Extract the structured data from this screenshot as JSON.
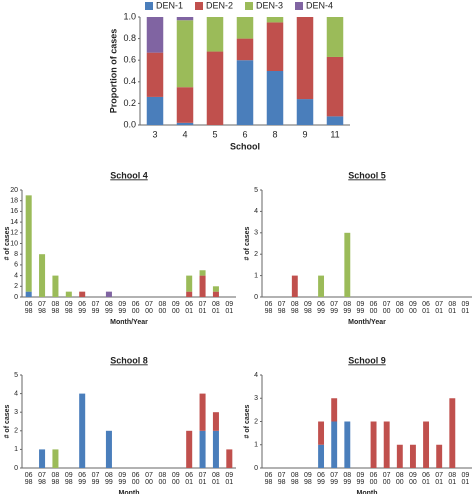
{
  "chart_data": [
    {
      "type": "bar",
      "stacked": true,
      "xlabel": "School",
      "ylabel": "Proportion of cases",
      "categories": [
        "3",
        "4",
        "5",
        "6",
        "8",
        "9",
        "11"
      ],
      "series": [
        {
          "name": "DEN-1",
          "color": "#4a7ebb",
          "values": [
            0.26,
            0.02,
            0,
            0.6,
            0.5,
            0.24,
            0.08
          ]
        },
        {
          "name": "DEN-2",
          "color": "#c0504d",
          "values": [
            0.41,
            0.33,
            0.68,
            0.2,
            0.45,
            0.76,
            0.55
          ]
        },
        {
          "name": "DEN-3",
          "color": "#9bbb59",
          "values": [
            0,
            0.62,
            0.32,
            0.2,
            0.05,
            0,
            0.37
          ]
        },
        {
          "name": "DEN-4",
          "color": "#8064a2",
          "values": [
            0.33,
            0.03,
            0,
            0,
            0,
            0,
            0
          ]
        }
      ],
      "ylim": [
        0,
        1
      ],
      "yticks": [
        {
          "value": 0,
          "label": "0.0"
        },
        {
          "value": 0.2,
          "label": "0.2"
        },
        {
          "value": 0.4,
          "label": "0.4"
        },
        {
          "value": 0.6,
          "label": "0.6"
        },
        {
          "value": 0.8,
          "label": "0.8"
        },
        {
          "value": 1,
          "label": "1.0"
        }
      ],
      "legend": "top"
    },
    {
      "type": "bar",
      "stacked": true,
      "title": "School 4",
      "xlabel": "Month/Year",
      "ylabel": "# of cases",
      "categories": [
        [
          "06",
          "98"
        ],
        [
          "07",
          "98"
        ],
        [
          "08",
          "98"
        ],
        [
          "09",
          "98"
        ],
        [
          "06",
          "99"
        ],
        [
          "07",
          "99"
        ],
        [
          "08",
          "99"
        ],
        [
          "09",
          "99"
        ],
        [
          "06",
          "00"
        ],
        [
          "07",
          "00"
        ],
        [
          "08",
          "00"
        ],
        [
          "09",
          "00"
        ],
        [
          "06",
          "01"
        ],
        [
          "07",
          "01"
        ],
        [
          "08",
          "01"
        ],
        [
          "09",
          "01"
        ]
      ],
      "series": [
        {
          "color": "#4a7ebb",
          "values": [
            1,
            0,
            0,
            0,
            0,
            0,
            0,
            0,
            0,
            0,
            0,
            0,
            0,
            0,
            0,
            0
          ]
        },
        {
          "color": "#c0504d",
          "values": [
            0,
            0,
            0,
            0,
            1,
            0,
            0,
            0,
            0,
            0,
            0,
            0,
            1,
            4,
            1,
            0
          ]
        },
        {
          "color": "#9bbb59",
          "values": [
            18,
            8,
            4,
            1,
            0,
            0,
            0,
            0,
            0,
            0,
            0,
            0,
            3,
            1,
            1,
            0
          ]
        },
        {
          "color": "#8064a2",
          "values": [
            0,
            0,
            0,
            0,
            0,
            0,
            1,
            0,
            0,
            0,
            0,
            0,
            0,
            0,
            0,
            0
          ]
        }
      ],
      "ylim": [
        0,
        20
      ],
      "yticks": [
        0,
        2,
        4,
        6,
        8,
        10,
        12,
        14,
        16,
        18,
        20
      ]
    },
    {
      "type": "bar",
      "stacked": true,
      "title": "School 5",
      "xlabel": "Month/Year",
      "ylabel": "# of cases",
      "categories": [
        [
          "06",
          "98"
        ],
        [
          "07",
          "98"
        ],
        [
          "08",
          "98"
        ],
        [
          "09",
          "98"
        ],
        [
          "06",
          "99"
        ],
        [
          "07",
          "99"
        ],
        [
          "08",
          "99"
        ],
        [
          "09",
          "99"
        ],
        [
          "06",
          "00"
        ],
        [
          "07",
          "00"
        ],
        [
          "08",
          "00"
        ],
        [
          "09",
          "00"
        ],
        [
          "06",
          "01"
        ],
        [
          "07",
          "01"
        ],
        [
          "08",
          "01"
        ],
        [
          "09",
          "01"
        ]
      ],
      "series": [
        {
          "color": "#4a7ebb",
          "values": [
            0,
            0,
            0,
            0,
            0,
            0,
            0,
            0,
            0,
            0,
            0,
            0,
            0,
            0,
            0,
            0
          ]
        },
        {
          "color": "#c0504d",
          "values": [
            0,
            0,
            1,
            0,
            0,
            0,
            0,
            0,
            0,
            0,
            0,
            0,
            0,
            0,
            0,
            0
          ]
        },
        {
          "color": "#9bbb59",
          "values": [
            0,
            0,
            0,
            0,
            1,
            0,
            3,
            0,
            0,
            0,
            0,
            0,
            0,
            0,
            0,
            0
          ]
        },
        {
          "color": "#8064a2",
          "values": [
            0,
            0,
            0,
            0,
            0,
            0,
            0,
            0,
            0,
            0,
            0,
            0,
            0,
            0,
            0,
            0
          ]
        }
      ],
      "ylim": [
        0,
        5
      ],
      "yticks": [
        0,
        1,
        2,
        3,
        4,
        5
      ]
    },
    {
      "type": "bar",
      "stacked": true,
      "title": "School 8",
      "xlabel": "Month",
      "ylabel": "# of cases",
      "categories": [
        [
          "06",
          "98"
        ],
        [
          "07",
          "98"
        ],
        [
          "08",
          "98"
        ],
        [
          "09",
          "98"
        ],
        [
          "06",
          "99"
        ],
        [
          "07",
          "99"
        ],
        [
          "08",
          "99"
        ],
        [
          "09",
          "99"
        ],
        [
          "06",
          "00"
        ],
        [
          "07",
          "00"
        ],
        [
          "08",
          "00"
        ],
        [
          "09",
          "00"
        ],
        [
          "06",
          "01"
        ],
        [
          "07",
          "01"
        ],
        [
          "08",
          "01"
        ],
        [
          "09",
          "01"
        ]
      ],
      "series": [
        {
          "color": "#4a7ebb",
          "values": [
            0,
            1,
            0,
            0,
            4,
            0,
            2,
            0,
            0,
            0,
            0,
            0,
            0,
            2,
            2,
            0
          ]
        },
        {
          "color": "#c0504d",
          "values": [
            0,
            0,
            0,
            0,
            0,
            0,
            0,
            0,
            0,
            0,
            0,
            0,
            2,
            2,
            1,
            1
          ]
        },
        {
          "color": "#9bbb59",
          "values": [
            0,
            0,
            1,
            0,
            0,
            0,
            0,
            0,
            0,
            0,
            0,
            0,
            0,
            0,
            0,
            0
          ]
        },
        {
          "color": "#8064a2",
          "values": [
            0,
            0,
            0,
            0,
            0,
            0,
            0,
            0,
            0,
            0,
            0,
            0,
            0,
            0,
            0,
            0
          ]
        }
      ],
      "ylim": [
        0,
        5
      ],
      "yticks": [
        0,
        1,
        2,
        3,
        4,
        5
      ]
    },
    {
      "type": "bar",
      "stacked": true,
      "title": "School 9",
      "xlabel": "Month",
      "ylabel": "# of cases",
      "categories": [
        [
          "06",
          "98"
        ],
        [
          "07",
          "98"
        ],
        [
          "08",
          "98"
        ],
        [
          "09",
          "98"
        ],
        [
          "06",
          "99"
        ],
        [
          "07",
          "99"
        ],
        [
          "08",
          "99"
        ],
        [
          "09",
          "99"
        ],
        [
          "06",
          "00"
        ],
        [
          "07",
          "00"
        ],
        [
          "08",
          "00"
        ],
        [
          "09",
          "00"
        ],
        [
          "06",
          "01"
        ],
        [
          "07",
          "01"
        ],
        [
          "08",
          "01"
        ],
        [
          "09",
          "01"
        ]
      ],
      "series": [
        {
          "color": "#4a7ebb",
          "values": [
            0,
            0,
            0,
            0,
            1,
            2,
            2,
            0,
            0,
            0,
            0,
            0,
            0,
            0,
            0,
            0
          ]
        },
        {
          "color": "#c0504d",
          "values": [
            0,
            0,
            0,
            0,
            1,
            1,
            0,
            0,
            2,
            2,
            1,
            1,
            2,
            1,
            3,
            0
          ]
        },
        {
          "color": "#9bbb59",
          "values": [
            0,
            0,
            0,
            0,
            0,
            0,
            0,
            0,
            0,
            0,
            0,
            0,
            0,
            0,
            0,
            0
          ]
        },
        {
          "color": "#8064a2",
          "values": [
            0,
            0,
            0,
            0,
            0,
            0,
            0,
            0,
            0,
            0,
            0,
            0,
            0,
            0,
            0,
            0
          ]
        }
      ],
      "ylim": [
        0,
        4
      ],
      "yticks": [
        0,
        1,
        2,
        3,
        4
      ]
    }
  ]
}
